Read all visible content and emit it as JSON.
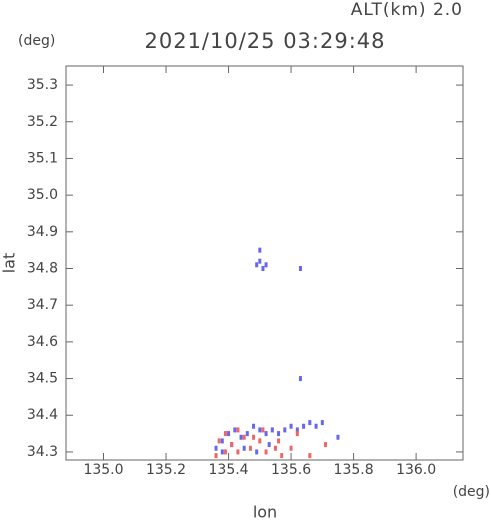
{
  "chart_data": {
    "type": "scatter",
    "annotation": "ALT(km)  2.0",
    "title": "2021/10/25 03:29:48",
    "y_unit": "(deg)",
    "x_unit": "(deg)",
    "ylabel": "lat",
    "xlabel": "lon",
    "xlim": [
      134.88,
      136.15
    ],
    "ylim": [
      34.278,
      35.352
    ],
    "xticks": [
      {
        "value": 135.0,
        "label": "135.0"
      },
      135.2,
      135.4,
      135.6,
      135.8,
      {
        "value": 136.0,
        "label": "136.0"
      }
    ],
    "yticks": [
      34.3,
      34.4,
      34.5,
      34.6,
      34.7,
      34.8,
      34.9,
      {
        "value": 35.0,
        "label": "35.0"
      },
      35.1,
      35.2,
      35.3
    ],
    "series": [
      {
        "color": "#6666ee",
        "x": [
          135.5,
          135.49,
          135.51,
          135.5,
          135.52,
          135.63,
          135.63,
          135.36,
          135.38,
          135.4,
          135.42,
          135.44,
          135.46,
          135.48,
          135.5,
          135.52,
          135.54,
          135.56,
          135.58,
          135.6,
          135.62,
          135.64,
          135.66,
          135.68,
          135.7,
          135.38,
          135.41,
          135.45,
          135.49,
          135.53,
          135.75
        ],
        "y": [
          34.85,
          34.81,
          34.8,
          34.82,
          34.81,
          34.8,
          34.5,
          34.31,
          34.33,
          34.35,
          34.36,
          34.34,
          34.35,
          34.37,
          34.36,
          34.35,
          34.36,
          34.35,
          34.36,
          34.37,
          34.36,
          34.37,
          34.38,
          34.37,
          34.38,
          34.3,
          34.32,
          34.31,
          34.3,
          34.32,
          34.34
        ]
      },
      {
        "color": "#ee6666",
        "x": [
          135.37,
          135.39,
          135.41,
          135.43,
          135.45,
          135.47,
          135.5,
          135.52,
          135.55,
          135.57,
          135.6,
          135.62,
          135.66,
          135.71,
          135.39,
          135.43,
          135.48,
          135.51,
          135.56,
          135.36
        ],
        "y": [
          34.33,
          34.3,
          34.32,
          34.3,
          34.34,
          34.31,
          34.33,
          34.3,
          34.31,
          34.29,
          34.31,
          34.35,
          34.29,
          34.32,
          34.35,
          34.36,
          34.34,
          34.36,
          34.33,
          34.29
        ]
      }
    ]
  }
}
